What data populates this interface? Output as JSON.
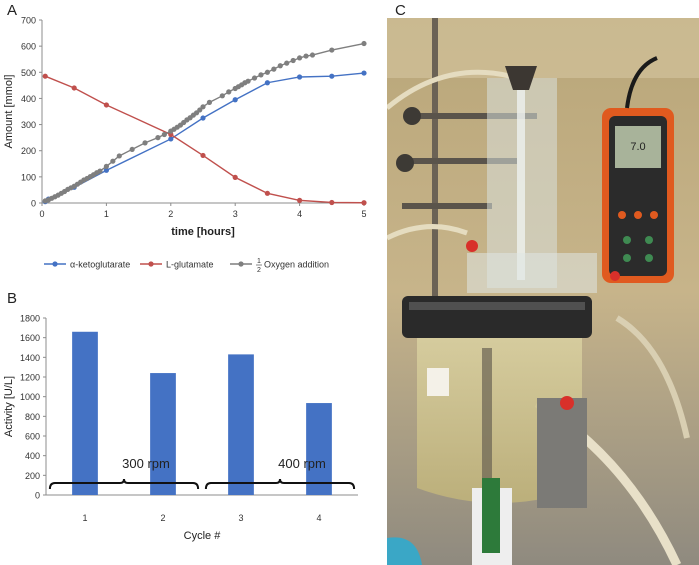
{
  "panels": {
    "a": "A",
    "b": "B",
    "c": "C"
  },
  "chart_data": [
    {
      "type": "line",
      "panel": "A",
      "xlabel": "time [hours]",
      "ylabel": "Amount [mmol]",
      "xlim": [
        0,
        5
      ],
      "ylim": [
        0,
        700
      ],
      "xticks": [
        0,
        1,
        2,
        3,
        4,
        5
      ],
      "yticks": [
        0,
        100,
        200,
        300,
        400,
        500,
        600,
        700
      ],
      "grid": false,
      "legend_position": "bottom",
      "series": [
        {
          "name": "α-ketoglutarate",
          "color": "#4472C4",
          "x": [
            0.05,
            0.1,
            0.5,
            1,
            2,
            2.5,
            3,
            3.5,
            4,
            4.5,
            5
          ],
          "y": [
            5,
            15,
            60,
            125,
            245,
            325,
            395,
            460,
            482,
            485,
            497
          ]
        },
        {
          "name": "L-glutamate",
          "color": "#C0504D",
          "x": [
            0.05,
            0.5,
            1,
            2,
            2.5,
            3,
            3.5,
            4,
            4.5,
            5
          ],
          "y": [
            485,
            440,
            375,
            262,
            182,
            98,
            37,
            10,
            2,
            1
          ]
        },
        {
          "name_prefix": "",
          "name_fraction": "1/2",
          "name_rest": "Oxygen addition",
          "color": "#7F7F7F",
          "x": [
            0.05,
            0.1,
            0.15,
            0.2,
            0.25,
            0.3,
            0.35,
            0.4,
            0.45,
            0.5,
            0.55,
            0.6,
            0.65,
            0.7,
            0.75,
            0.8,
            0.85,
            0.9,
            1.0,
            1.1,
            1.2,
            1.4,
            1.6,
            1.8,
            1.9,
            2.0,
            2.05,
            2.1,
            2.15,
            2.2,
            2.25,
            2.3,
            2.35,
            2.4,
            2.45,
            2.5,
            2.6,
            2.8,
            2.9,
            3.0,
            3.05,
            3.1,
            3.15,
            3.2,
            3.3,
            3.4,
            3.5,
            3.6,
            3.7,
            3.8,
            3.9,
            4.0,
            4.1,
            4.2,
            4.5,
            5.0
          ],
          "y": [
            8,
            12,
            18,
            24,
            30,
            37,
            44,
            52,
            58,
            64,
            72,
            80,
            88,
            94,
            101,
            108,
            116,
            122,
            140,
            160,
            180,
            205,
            230,
            250,
            262,
            275,
            282,
            290,
            298,
            308,
            318,
            326,
            336,
            345,
            356,
            368,
            385,
            410,
            425,
            438,
            445,
            452,
            460,
            466,
            478,
            490,
            500,
            512,
            525,
            535,
            545,
            555,
            562,
            566,
            585,
            610
          ]
        }
      ]
    },
    {
      "type": "bar",
      "panel": "B",
      "categories": [
        "1",
        "2",
        "3",
        "4"
      ],
      "values": [
        1660,
        1240,
        1430,
        935
      ],
      "color": "#4472C4",
      "xlabel": "Cycle #",
      "ylabel": "Activity [U/L]",
      "ylim": [
        0,
        1800
      ],
      "yticks": [
        0,
        200,
        400,
        600,
        800,
        1000,
        1200,
        1400,
        1600,
        1800
      ],
      "grid": false,
      "annotations": [
        {
          "text": "300 rpm",
          "categories": [
            "1",
            "2"
          ]
        },
        {
          "text": "400 rpm",
          "categories": [
            "3",
            "4"
          ]
        }
      ]
    }
  ]
}
